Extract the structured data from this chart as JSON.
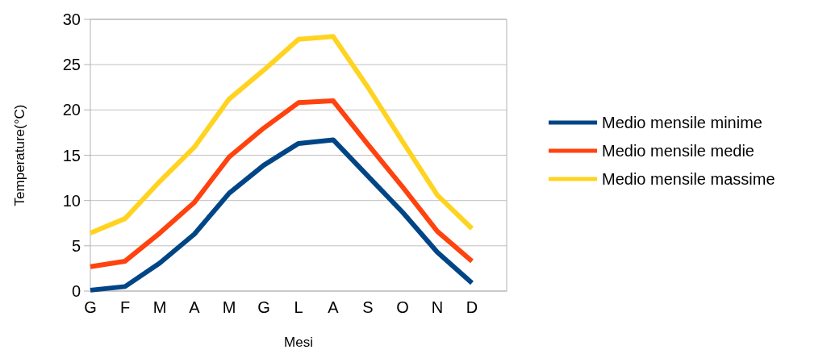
{
  "chart_data": {
    "type": "line",
    "xlabel": "Mesi",
    "ylabel": "Temperature(°C)",
    "categories": [
      "G",
      "F",
      "M",
      "A",
      "M",
      "G",
      "L",
      "A",
      "S",
      "O",
      "N",
      "D"
    ],
    "series": [
      {
        "name": "Medio mensile minime",
        "color": "#004586",
        "values": [
          0.1,
          0.5,
          3.1,
          6.3,
          10.8,
          13.9,
          16.3,
          16.7,
          12.7,
          8.7,
          4.3,
          0.9
        ]
      },
      {
        "name": "Medio mensile medie",
        "color": "#ff420e",
        "values": [
          2.7,
          3.3,
          6.4,
          9.8,
          14.8,
          18.0,
          20.8,
          21.0,
          16.2,
          11.5,
          6.6,
          3.3
        ]
      },
      {
        "name": "Medio mensile massime",
        "color": "#ffd320",
        "values": [
          6.4,
          8.0,
          12.1,
          15.9,
          21.2,
          24.4,
          27.8,
          28.1,
          22.5,
          16.5,
          10.6,
          6.9
        ]
      }
    ],
    "ylim": [
      0,
      30
    ],
    "yticks": [
      0,
      5,
      10,
      15,
      20,
      25,
      30
    ],
    "grid": "y",
    "legend": "right",
    "marker": "none",
    "line_style": "solid"
  }
}
